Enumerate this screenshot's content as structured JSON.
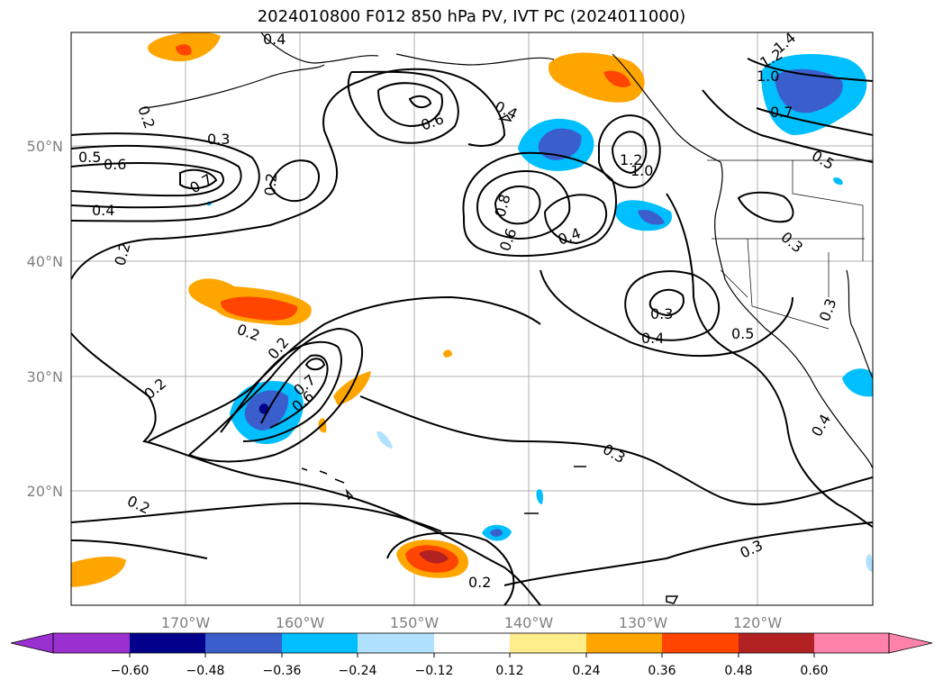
{
  "title": "2024010800 F012 850 hPa PV, IVT PC (2024011000)",
  "map": {
    "lon_ticks": [
      "170°W",
      "160°W",
      "150°W",
      "140°W",
      "130°W",
      "120°W"
    ],
    "lat_ticks": [
      "50°N",
      "40°N",
      "30°N",
      "20°N"
    ],
    "contour_labels": [
      "0.4",
      "0.2",
      "0.3",
      "0.5",
      "0.6",
      "0.7",
      "0.4",
      "0.2",
      "0.2",
      "0.6",
      "0.4",
      "0.8",
      "0.6",
      "0.4",
      "1.2",
      "1.0",
      "1.4",
      "1.2",
      "1.0",
      "0.7",
      "0.5",
      "0.3",
      "0.3",
      "0.5",
      "0.4",
      "0.3",
      "0.2",
      "0.2",
      "0.7",
      "0.6",
      "0.2",
      "0.3",
      "0.2",
      "0.2",
      "0.3",
      "0.4"
    ],
    "contour_color": "#000000",
    "grid": true
  },
  "colorbar": {
    "ticks": [
      "−0.60",
      "−0.48",
      "−0.36",
      "−0.24",
      "−0.12",
      "0.12",
      "0.24",
      "0.36",
      "0.48",
      "0.60"
    ],
    "colors": [
      "#9b30d0",
      "#00008b",
      "#3a5fcd",
      "#00bfff",
      "#b0e2ff",
      "#ffffff",
      "#ffec8b",
      "#ffa500",
      "#ff4500",
      "#b22222",
      "#ff82ab"
    ]
  }
}
